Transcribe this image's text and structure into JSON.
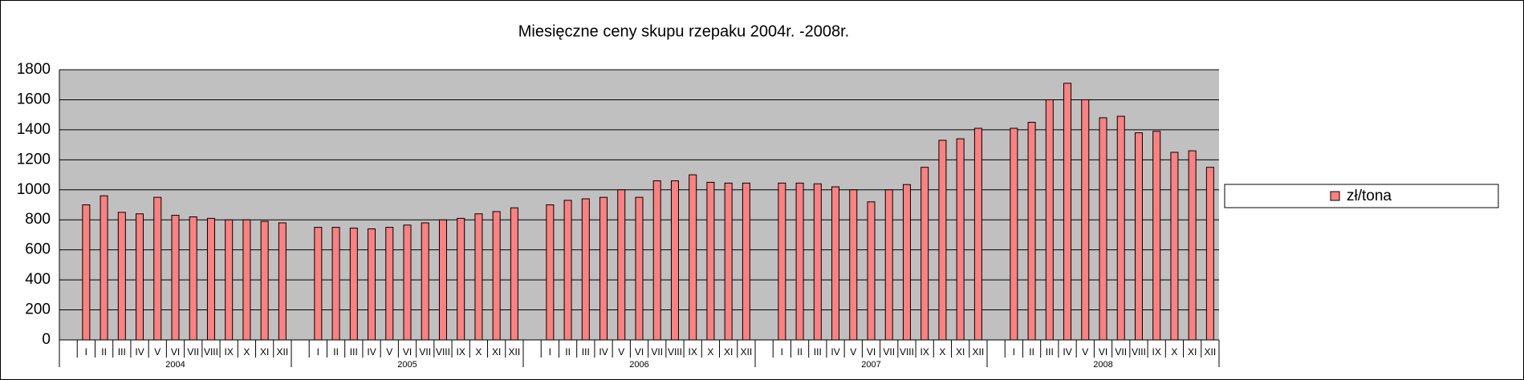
{
  "chart_data": {
    "type": "bar",
    "title": "Miesięczne ceny skupu  rzepaku 2004r. -2008r.",
    "groups": [
      "2004",
      "2005",
      "2006",
      "2007",
      "2008"
    ],
    "categories": [
      null,
      "I",
      "II",
      "III",
      "IV",
      "V",
      "VI",
      "VII",
      "VIII",
      "IX",
      "X",
      "XI",
      "XII",
      null,
      "I",
      "II",
      "III",
      "IV",
      "V",
      "VI",
      "VII",
      "VIII",
      "IX",
      "X",
      "XI",
      "XII",
      null,
      "I",
      "II",
      "III",
      "IV",
      "V",
      "VI",
      "VII",
      "VIII",
      "IX",
      "X",
      "XI",
      "XII",
      null,
      "I",
      "II",
      "III",
      "IV",
      "V",
      "VI",
      "VII",
      "VIII",
      "IX",
      "X",
      "XI",
      "XII",
      null,
      "I",
      "II",
      "III",
      "IV",
      "V",
      "VI",
      "VII",
      "VIII",
      "IX",
      "X",
      "XI",
      "XII"
    ],
    "series": [
      {
        "name": "zł/tona",
        "color": "#ff8080",
        "values": [
          null,
          900,
          960,
          850,
          840,
          950,
          830,
          820,
          810,
          800,
          800,
          790,
          780,
          null,
          750,
          750,
          745,
          740,
          750,
          765,
          780,
          800,
          810,
          840,
          855,
          880,
          null,
          900,
          930,
          940,
          950,
          1000,
          950,
          1060,
          1060,
          1100,
          1050,
          1045,
          1045,
          null,
          1045,
          1045,
          1040,
          1020,
          1000,
          920,
          1000,
          1035,
          1150,
          1330,
          1340,
          1410,
          null,
          1410,
          1450,
          1600,
          1710,
          1600,
          1480,
          1490,
          1380,
          1390,
          1250,
          1260,
          1150
        ]
      }
    ],
    "ylim": [
      0,
      1800
    ],
    "yticks": [
      0,
      200,
      400,
      600,
      800,
      1000,
      1200,
      1400,
      1600,
      1800
    ],
    "grid": true,
    "legend": "right"
  }
}
